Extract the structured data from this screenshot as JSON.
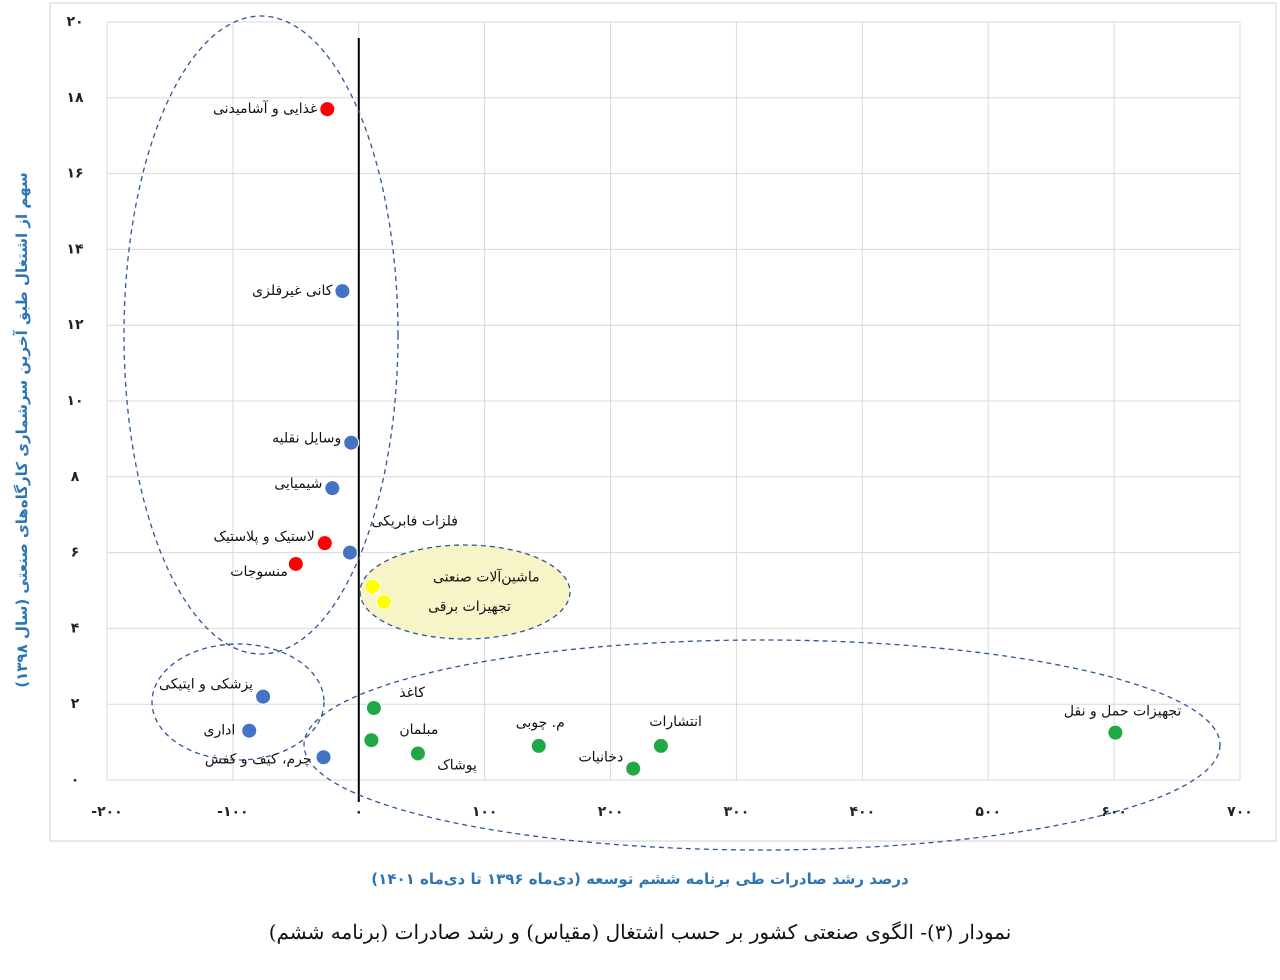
{
  "chart_data": {
    "type": "scatter",
    "x_label": "درصد رشد صادرات طی برنامه ششم توسعه (دی‌ماه ۱۳۹۶ تا دی‌ماه ۱۴۰۱)",
    "y_label": "سهم از اشتغال طبق آخرین سرشماری کارگاه‌های صنعتی (سال ۱۳۹۸)",
    "caption": "نمودار (۳)- الگوی صنعتی کشور بر حسب اشتغال (مقیاس) و رشد صادرات (برنامه ششم)",
    "xlim": [
      -200,
      700
    ],
    "xticks": [
      {
        "value": -200,
        "label": "-۲۰۰"
      },
      {
        "value": -100,
        "label": "-۱۰۰"
      },
      {
        "value": 0,
        "label": "۰"
      },
      {
        "value": 100,
        "label": "۱۰۰"
      },
      {
        "value": 200,
        "label": "۲۰۰"
      },
      {
        "value": 300,
        "label": "۳۰۰"
      },
      {
        "value": 400,
        "label": "۴۰۰"
      },
      {
        "value": 500,
        "label": "۵۰۰"
      },
      {
        "value": 600,
        "label": "۶۰۰"
      },
      {
        "value": 700,
        "label": "۷۰۰"
      }
    ],
    "ylim": [
      0,
      20
    ],
    "yticks": [
      {
        "value": 0,
        "label": "۰"
      },
      {
        "value": 2,
        "label": "۲"
      },
      {
        "value": 4,
        "label": "۴"
      },
      {
        "value": 6,
        "label": "۶"
      },
      {
        "value": 8,
        "label": "۸"
      },
      {
        "value": 10,
        "label": "۱۰"
      },
      {
        "value": 12,
        "label": "۱۲"
      },
      {
        "value": 14,
        "label": "۱۴"
      },
      {
        "value": 16,
        "label": "۱۶"
      },
      {
        "value": 18,
        "label": "۱۸"
      },
      {
        "value": 20,
        "label": "۲۰"
      }
    ],
    "grid": true,
    "points": [
      {
        "label": "غذایی و آشامیدنی",
        "x": -25,
        "y": 17.7,
        "color": "#ff0000"
      },
      {
        "label": "کانی غیرفلزی",
        "x": -13,
        "y": 12.9,
        "color": "#4472c4"
      },
      {
        "label": "وسایل نقلیه",
        "x": -6,
        "y": 8.9,
        "color": "#4472c4"
      },
      {
        "label": "شیمیایی",
        "x": -21,
        "y": 7.7,
        "color": "#4472c4"
      },
      {
        "label": "فلزات فابریکی",
        "x": -7,
        "y": 6.0,
        "color": "#4472c4"
      },
      {
        "label": "لاستیک و پلاستیک",
        "x": -27,
        "y": 6.25,
        "color": "#ff0000"
      },
      {
        "label": "منسوجات",
        "x": -50,
        "y": 5.7,
        "color": "#ff0000"
      },
      {
        "label": "ماشین‌آلات صنعتی",
        "x": 11,
        "y": 5.1,
        "color": "#ffff00"
      },
      {
        "label": "تجهیزات برقی",
        "x": 20,
        "y": 4.7,
        "color": "#ffff00"
      },
      {
        "label": "پزشکی و اپتیکی",
        "x": -76,
        "y": 2.2,
        "color": "#4472c4"
      },
      {
        "label": "اداری",
        "x": -87,
        "y": 1.3,
        "color": "#4472c4"
      },
      {
        "label": "چرم، کیف و کفش",
        "x": -28,
        "y": 0.6,
        "color": "#4472c4"
      },
      {
        "label": "کاغذ",
        "x": 12,
        "y": 1.9,
        "color": "#21a846"
      },
      {
        "label": "مبلمان",
        "x": 10,
        "y": 1.05,
        "color": "#21a846"
      },
      {
        "label": "پوشاک",
        "x": 47,
        "y": 0.7,
        "color": "#21a846"
      },
      {
        "label": "م. چوبی",
        "x": 143,
        "y": 0.9,
        "color": "#21a846"
      },
      {
        "label": "دخانیات",
        "x": 218,
        "y": 0.3,
        "color": "#21a846"
      },
      {
        "label": "انتشارات",
        "x": 240,
        "y": 0.9,
        "color": "#21a846"
      },
      {
        "label": "تجهیزات حمل و نقل",
        "x": 601,
        "y": 1.25,
        "color": "#21a846"
      }
    ]
  }
}
